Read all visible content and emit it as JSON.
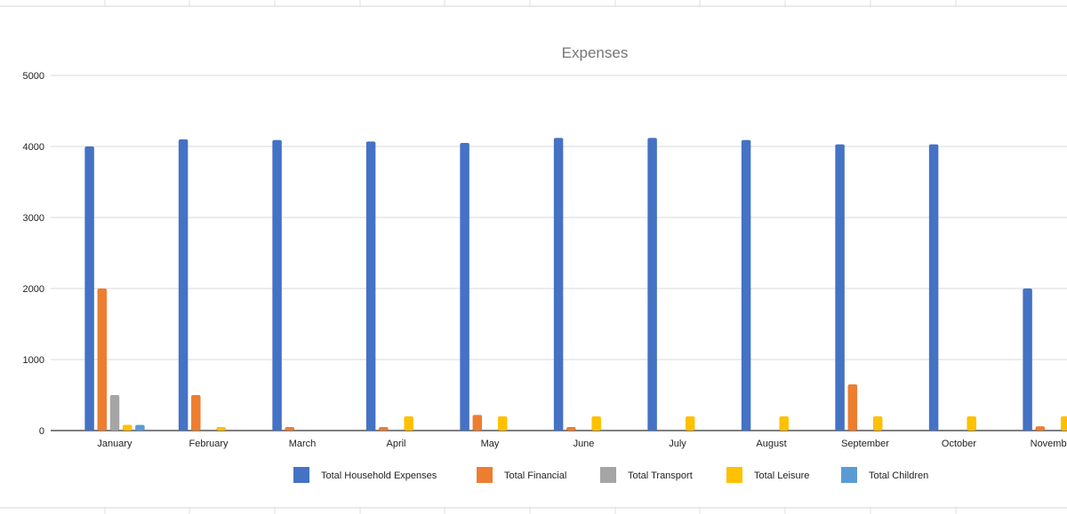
{
  "colors": {
    "household": "#4472c4",
    "financial": "#ed7d31",
    "transport": "#a5a5a5",
    "leisure": "#ffc000",
    "children": "#5b9bd5",
    "gridline": "#d9d9d9",
    "axis": "#333333"
  },
  "chart_data": {
    "type": "bar",
    "title": "Expenses",
    "xlabel": "",
    "ylabel": "",
    "ylim": [
      0,
      5000
    ],
    "yticks": [
      0,
      1000,
      2000,
      3000,
      4000,
      5000
    ],
    "grid": true,
    "legend_position": "bottom",
    "categories": [
      "January",
      "February",
      "March",
      "April",
      "May",
      "June",
      "July",
      "August",
      "September",
      "October",
      "November"
    ],
    "series": [
      {
        "name": "Total Household Expenses",
        "color_key": "household",
        "values": [
          4000,
          4100,
          4090,
          4070,
          4050,
          4120,
          4120,
          4090,
          4030,
          4030,
          2000
        ]
      },
      {
        "name": "Total Financial",
        "color_key": "financial",
        "values": [
          2000,
          500,
          50,
          50,
          220,
          50,
          0,
          0,
          650,
          0,
          60
        ]
      },
      {
        "name": "Total Transport",
        "color_key": "transport",
        "values": [
          500,
          0,
          0,
          0,
          0,
          0,
          0,
          0,
          0,
          0,
          0
        ]
      },
      {
        "name": "Total Leisure",
        "color_key": "leisure",
        "values": [
          80,
          50,
          0,
          200,
          200,
          200,
          200,
          200,
          200,
          200,
          200
        ]
      },
      {
        "name": "Total Children",
        "color_key": "children",
        "values": [
          80,
          0,
          0,
          0,
          0,
          0,
          0,
          0,
          0,
          0,
          0
        ]
      }
    ]
  }
}
